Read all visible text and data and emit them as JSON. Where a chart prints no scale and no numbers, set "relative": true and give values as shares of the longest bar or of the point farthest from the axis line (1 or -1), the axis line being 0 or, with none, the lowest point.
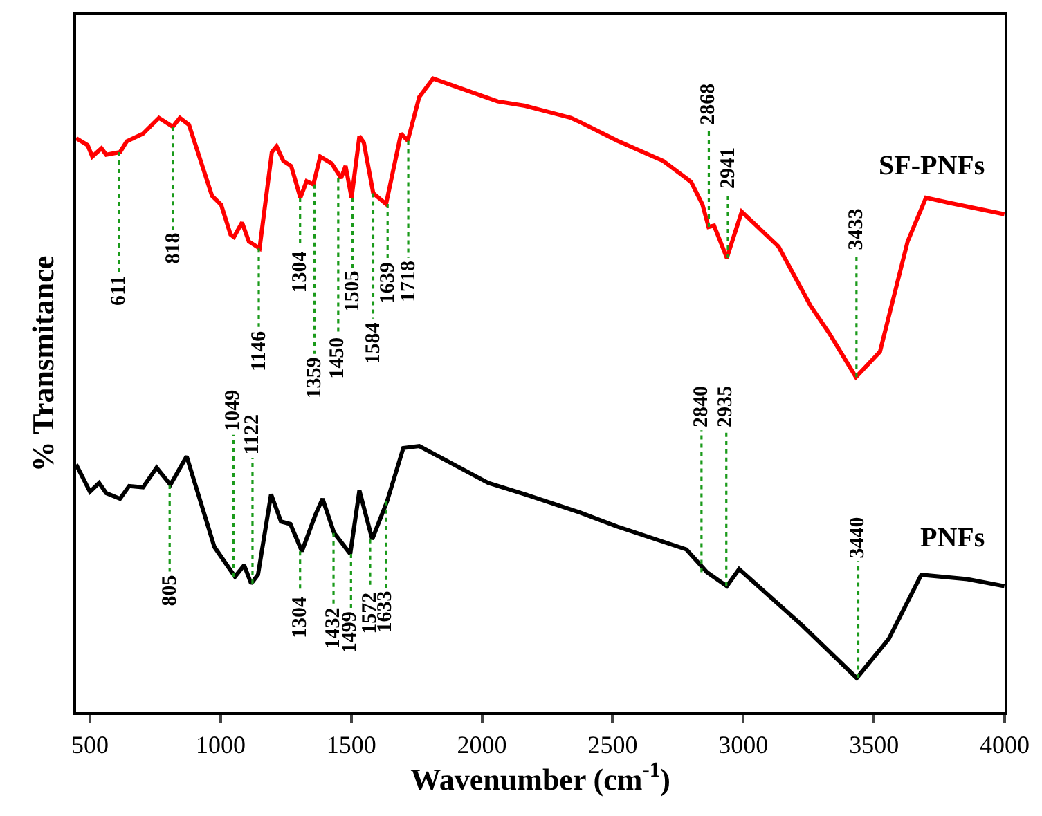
{
  "chart_data": {
    "type": "line",
    "relative": true,
    "xlabel": "Wavenumber (cm$^{-1}$)",
    "ylabel": "% Transmitance",
    "xlim": [
      447,
      4000
    ],
    "xticks": [
      500,
      1000,
      1500,
      2000,
      2500,
      3000,
      3500,
      4000
    ],
    "legend": false,
    "marker": "none",
    "line_style": "solid",
    "series": [
      {
        "name": "SF-PNFs",
        "color": "#ff0000",
        "x": [
          447,
          491,
          509,
          544,
          562,
          615,
          641,
          703,
          764,
          817,
          844,
          879,
          967,
          1002,
          1038,
          1051,
          1082,
          1108,
          1149,
          1196,
          1214,
          1240,
          1270,
          1305,
          1329,
          1355,
          1381,
          1425,
          1461,
          1478,
          1501,
          1531,
          1548,
          1584,
          1633,
          1690,
          1716,
          1760,
          1813,
          2060,
          2165,
          2201,
          2341,
          2377,
          2518,
          2694,
          2800,
          2844,
          2867,
          2888,
          2937,
          2994,
          3135,
          3258,
          3329,
          3431,
          3523,
          3629,
          3699,
          3787,
          3999
        ],
        "values": [
          0.906,
          0.895,
          0.877,
          0.89,
          0.88,
          0.884,
          0.901,
          0.913,
          0.938,
          0.924,
          0.938,
          0.927,
          0.815,
          0.801,
          0.754,
          0.75,
          0.773,
          0.743,
          0.732,
          0.884,
          0.893,
          0.87,
          0.862,
          0.812,
          0.838,
          0.833,
          0.877,
          0.866,
          0.843,
          0.862,
          0.812,
          0.909,
          0.899,
          0.819,
          0.802,
          0.913,
          0.902,
          0.971,
          1.0,
          0.964,
          0.957,
          0.953,
          0.938,
          0.931,
          0.902,
          0.87,
          0.837,
          0.801,
          0.766,
          0.768,
          0.717,
          0.79,
          0.735,
          0.641,
          0.598,
          0.529,
          0.569,
          0.743,
          0.812,
          0.804,
          0.786
        ]
      },
      {
        "name": "PNFs",
        "color": "#000000",
        "x": [
          447,
          500,
          535,
          562,
          615,
          650,
          703,
          755,
          808,
          870,
          976,
          1055,
          1090,
          1117,
          1143,
          1193,
          1231,
          1267,
          1311,
          1363,
          1390,
          1434,
          1496,
          1531,
          1580,
          1637,
          1699,
          1760,
          2024,
          2165,
          2377,
          2518,
          2782,
          2861,
          2937,
          2984,
          3223,
          3434,
          3557,
          3681,
          3857,
          3999
        ],
        "values": [
          0.391,
          0.348,
          0.362,
          0.346,
          0.337,
          0.357,
          0.355,
          0.386,
          0.359,
          0.404,
          0.261,
          0.214,
          0.232,
          0.203,
          0.217,
          0.344,
          0.301,
          0.297,
          0.254,
          0.312,
          0.337,
          0.283,
          0.25,
          0.35,
          0.273,
          0.333,
          0.417,
          0.42,
          0.362,
          0.344,
          0.315,
          0.293,
          0.257,
          0.221,
          0.199,
          0.226,
          0.138,
          0.054,
          0.116,
          0.217,
          0.21,
          0.199
        ]
      }
    ],
    "annotations": [
      {
        "text": "611",
        "x": 611,
        "y": 0.884
      },
      {
        "text": "818",
        "x": 818,
        "y": 0.924
      },
      {
        "text": "1146",
        "x": 1146,
        "y": 0.732
      },
      {
        "text": "1304",
        "x": 1304,
        "y": 0.812
      },
      {
        "text": "1359",
        "x": 1359,
        "y": 0.833
      },
      {
        "text": "1450",
        "x": 1450,
        "y": 0.843
      },
      {
        "text": "1505",
        "x": 1505,
        "y": 0.812
      },
      {
        "text": "1584",
        "x": 1584,
        "y": 0.819
      },
      {
        "text": "1639",
        "x": 1639,
        "y": 0.802
      },
      {
        "text": "1718",
        "x": 1718,
        "y": 0.902
      },
      {
        "text": "2868",
        "x": 2868,
        "y": 0.766
      },
      {
        "text": "2941",
        "x": 2941,
        "y": 0.717
      },
      {
        "text": "3433",
        "x": 3433,
        "y": 0.529
      },
      {
        "text": "805",
        "x": 805,
        "y": 0.359
      },
      {
        "text": "1049",
        "x": 1049,
        "y": 0.214
      },
      {
        "text": "1122",
        "x": 1122,
        "y": 0.203
      },
      {
        "text": "1304",
        "x": 1304,
        "y": 0.254
      },
      {
        "text": "1432",
        "x": 1432,
        "y": 0.283
      },
      {
        "text": "1499",
        "x": 1499,
        "y": 0.25
      },
      {
        "text": "1572",
        "x": 1572,
        "y": 0.273
      },
      {
        "text": "1633",
        "x": 1633,
        "y": 0.333
      },
      {
        "text": "2840",
        "x": 2840,
        "y": 0.221
      },
      {
        "text": "2935",
        "x": 2935,
        "y": 0.199
      },
      {
        "text": "3440",
        "x": 3440,
        "y": 0.054
      }
    ]
  }
}
